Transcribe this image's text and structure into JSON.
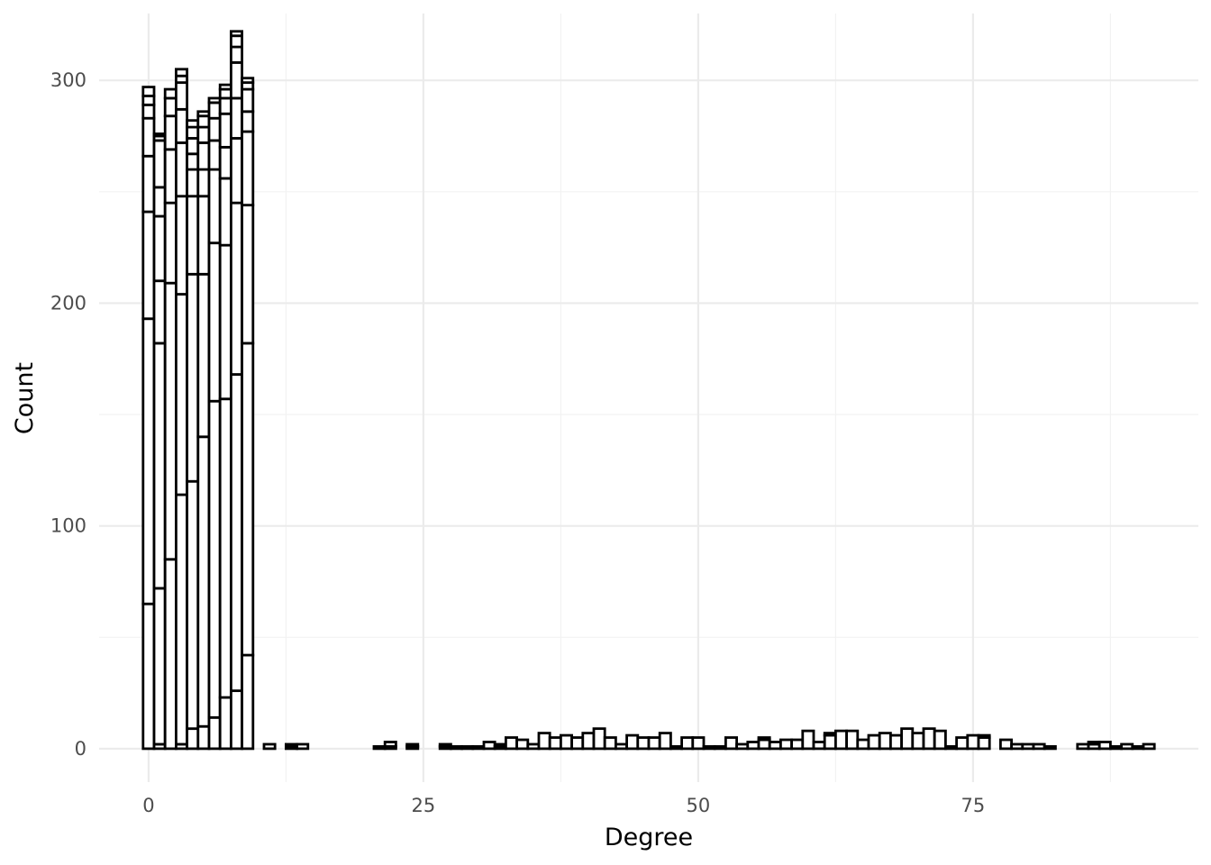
{
  "chart_data": {
    "type": "bar",
    "subtype": "stacked-histogram",
    "title": "",
    "xlabel": "Degree",
    "ylabel": "Count",
    "xlim": [
      -4.5,
      95.5
    ],
    "ylim": [
      -15,
      330
    ],
    "x_ticks": [
      0,
      25,
      50,
      75
    ],
    "y_ticks": [
      0,
      100,
      200,
      300
    ],
    "grid": true,
    "legend": "none",
    "bar_fill": "#ffffff",
    "bar_stroke": "#000000",
    "bins": [
      {
        "x": 0,
        "stack": [
          65,
          128,
          48,
          25,
          17,
          6,
          4,
          4
        ]
      },
      {
        "x": 1,
        "stack": [
          2,
          70,
          110,
          28,
          29,
          13,
          21,
          2,
          1
        ]
      },
      {
        "x": 2,
        "stack": [
          85,
          124,
          36,
          24,
          15,
          8,
          4
        ]
      },
      {
        "x": 3,
        "stack": [
          2,
          112,
          90,
          44,
          24,
          15,
          12,
          3,
          3
        ]
      },
      {
        "x": 4,
        "stack": [
          9,
          111,
          93,
          35,
          12,
          7,
          7,
          5,
          3
        ]
      },
      {
        "x": 5,
        "stack": [
          10,
          130,
          73,
          35,
          12,
          12,
          7,
          5,
          2
        ]
      },
      {
        "x": 6,
        "stack": [
          14,
          142,
          71,
          33,
          13,
          10,
          7,
          2
        ]
      },
      {
        "x": 7,
        "stack": [
          23,
          134,
          69,
          30,
          14,
          15,
          7,
          4,
          2
        ]
      },
      {
        "x": 8,
        "stack": [
          26,
          142,
          77,
          29,
          18,
          16,
          7,
          5,
          2
        ]
      },
      {
        "x": 9,
        "stack": [
          42,
          140,
          62,
          33,
          9,
          10,
          3,
          2
        ]
      },
      {
        "x": 11,
        "stack": [
          2
        ]
      },
      {
        "x": 13,
        "stack": [
          1,
          1
        ]
      },
      {
        "x": 14,
        "stack": [
          2
        ]
      },
      {
        "x": 21,
        "stack": [
          1
        ]
      },
      {
        "x": 22,
        "stack": [
          1,
          2
        ]
      },
      {
        "x": 24,
        "stack": [
          1,
          1
        ]
      },
      {
        "x": 27,
        "stack": [
          1,
          1
        ]
      },
      {
        "x": 28,
        "stack": [
          1
        ]
      },
      {
        "x": 29,
        "stack": [
          1
        ]
      },
      {
        "x": 30,
        "stack": [
          1
        ]
      },
      {
        "x": 31,
        "stack": [
          3
        ]
      },
      {
        "x": 32,
        "stack": [
          1,
          1
        ]
      },
      {
        "x": 33,
        "stack": [
          5
        ]
      },
      {
        "x": 34,
        "stack": [
          4
        ]
      },
      {
        "x": 35,
        "stack": [
          2
        ]
      },
      {
        "x": 36,
        "stack": [
          7
        ]
      },
      {
        "x": 37,
        "stack": [
          5
        ]
      },
      {
        "x": 38,
        "stack": [
          6
        ]
      },
      {
        "x": 39,
        "stack": [
          5
        ]
      },
      {
        "x": 40,
        "stack": [
          7
        ]
      },
      {
        "x": 41,
        "stack": [
          9
        ]
      },
      {
        "x": 42,
        "stack": [
          5
        ]
      },
      {
        "x": 43,
        "stack": [
          2
        ]
      },
      {
        "x": 44,
        "stack": [
          6
        ]
      },
      {
        "x": 45,
        "stack": [
          5
        ]
      },
      {
        "x": 46,
        "stack": [
          5
        ]
      },
      {
        "x": 47,
        "stack": [
          7
        ]
      },
      {
        "x": 48,
        "stack": [
          1
        ]
      },
      {
        "x": 49,
        "stack": [
          5
        ]
      },
      {
        "x": 50,
        "stack": [
          5
        ]
      },
      {
        "x": 51,
        "stack": [
          1
        ]
      },
      {
        "x": 52,
        "stack": [
          1
        ]
      },
      {
        "x": 53,
        "stack": [
          5
        ]
      },
      {
        "x": 54,
        "stack": [
          2
        ]
      },
      {
        "x": 55,
        "stack": [
          3
        ]
      },
      {
        "x": 56,
        "stack": [
          4,
          1
        ]
      },
      {
        "x": 57,
        "stack": [
          3
        ]
      },
      {
        "x": 58,
        "stack": [
          4
        ]
      },
      {
        "x": 59,
        "stack": [
          4
        ]
      },
      {
        "x": 60,
        "stack": [
          8
        ]
      },
      {
        "x": 61,
        "stack": [
          3
        ]
      },
      {
        "x": 62,
        "stack": [
          6,
          1
        ]
      },
      {
        "x": 63,
        "stack": [
          8
        ]
      },
      {
        "x": 64,
        "stack": [
          8
        ]
      },
      {
        "x": 65,
        "stack": [
          4
        ]
      },
      {
        "x": 66,
        "stack": [
          6
        ]
      },
      {
        "x": 67,
        "stack": [
          7
        ]
      },
      {
        "x": 68,
        "stack": [
          6
        ]
      },
      {
        "x": 69,
        "stack": [
          9
        ]
      },
      {
        "x": 70,
        "stack": [
          7
        ]
      },
      {
        "x": 71,
        "stack": [
          9
        ]
      },
      {
        "x": 72,
        "stack": [
          8
        ]
      },
      {
        "x": 73,
        "stack": [
          1
        ]
      },
      {
        "x": 74,
        "stack": [
          5
        ]
      },
      {
        "x": 75,
        "stack": [
          6
        ]
      },
      {
        "x": 76,
        "stack": [
          5,
          1
        ]
      },
      {
        "x": 78,
        "stack": [
          4
        ]
      },
      {
        "x": 79,
        "stack": [
          2
        ]
      },
      {
        "x": 80,
        "stack": [
          2
        ]
      },
      {
        "x": 81,
        "stack": [
          2
        ]
      },
      {
        "x": 82,
        "stack": [
          1
        ]
      },
      {
        "x": 85,
        "stack": [
          2
        ]
      },
      {
        "x": 86,
        "stack": [
          2,
          1
        ]
      },
      {
        "x": 87,
        "stack": [
          3
        ]
      },
      {
        "x": 88,
        "stack": [
          1
        ]
      },
      {
        "x": 89,
        "stack": [
          2
        ]
      },
      {
        "x": 90,
        "stack": [
          1
        ]
      },
      {
        "x": 91,
        "stack": [
          2
        ]
      }
    ]
  }
}
